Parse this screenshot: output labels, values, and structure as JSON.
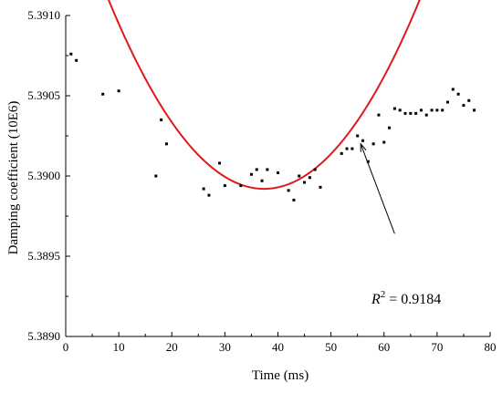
{
  "chart_data": {
    "type": "scatter",
    "xlabel": "Time (ms)",
    "ylabel": "Damping coefficient (10E6)",
    "xlim": [
      0,
      80
    ],
    "ylim": [
      5.389,
      5.391
    ],
    "x_ticks": [
      0,
      10,
      20,
      30,
      40,
      50,
      60,
      70,
      80
    ],
    "x_tick_labels": [
      "0",
      "10",
      "20",
      "30",
      "40",
      "50",
      "60",
      "70",
      "80"
    ],
    "y_ticks": [
      5.389,
      5.3895,
      5.39,
      5.3905,
      5.391
    ],
    "y_tick_labels": [
      "5.3890",
      "5.3895",
      "5.3900",
      "5.3905",
      "5.3910"
    ],
    "grid": false,
    "series": [
      {
        "kind": "points",
        "color": "#000000",
        "points": [
          [
            1,
            5.39076
          ],
          [
            2,
            5.39072
          ],
          [
            7,
            5.39051
          ],
          [
            10,
            5.39053
          ],
          [
            17,
            5.39
          ],
          [
            18,
            5.39035
          ],
          [
            19,
            5.3902
          ],
          [
            26,
            5.38992
          ],
          [
            27,
            5.38988
          ],
          [
            29,
            5.39008
          ],
          [
            30,
            5.38994
          ],
          [
            33,
            5.38994
          ],
          [
            35,
            5.39001
          ],
          [
            36,
            5.39004
          ],
          [
            37,
            5.38997
          ],
          [
            38,
            5.39004
          ],
          [
            40,
            5.39002
          ],
          [
            42,
            5.38991
          ],
          [
            43,
            5.38985
          ],
          [
            44,
            5.39
          ],
          [
            45,
            5.38996
          ],
          [
            46,
            5.38999
          ],
          [
            47,
            5.39004
          ],
          [
            48,
            5.38993
          ],
          [
            52,
            5.39014
          ],
          [
            53,
            5.39017
          ],
          [
            54,
            5.39017
          ],
          [
            55,
            5.39025
          ],
          [
            56,
            5.39022
          ],
          [
            57,
            5.39009
          ],
          [
            58,
            5.3902
          ],
          [
            59,
            5.39038
          ],
          [
            60,
            5.39021
          ],
          [
            61,
            5.3903
          ],
          [
            62,
            5.39042
          ],
          [
            63,
            5.39041
          ],
          [
            64,
            5.39039
          ],
          [
            65,
            5.39039
          ],
          [
            66,
            5.39039
          ],
          [
            67,
            5.39041
          ],
          [
            68,
            5.39038
          ],
          [
            69,
            5.39041
          ],
          [
            70,
            5.39041
          ],
          [
            71,
            5.39041
          ],
          [
            72,
            5.39046
          ],
          [
            73,
            5.39054
          ],
          [
            74,
            5.39051
          ],
          [
            75,
            5.39044
          ],
          [
            76,
            5.39047
          ],
          [
            77,
            5.39041
          ]
        ]
      },
      {
        "kind": "fit",
        "color": "#e0191c",
        "quadratic": {
          "a": 1.37e-06,
          "vertex_x": 37.4,
          "vertex_y": 5.38992
        },
        "x_range": [
          0,
          80
        ]
      }
    ],
    "annotations": [
      {
        "r2_symbol": "R",
        "r2_superscript": "2",
        "r2_value": " = 0.9184",
        "arrow_from": [
          62,
          5.38964
        ],
        "arrow_to": [
          55.6,
          5.3902
        ]
      }
    ]
  }
}
